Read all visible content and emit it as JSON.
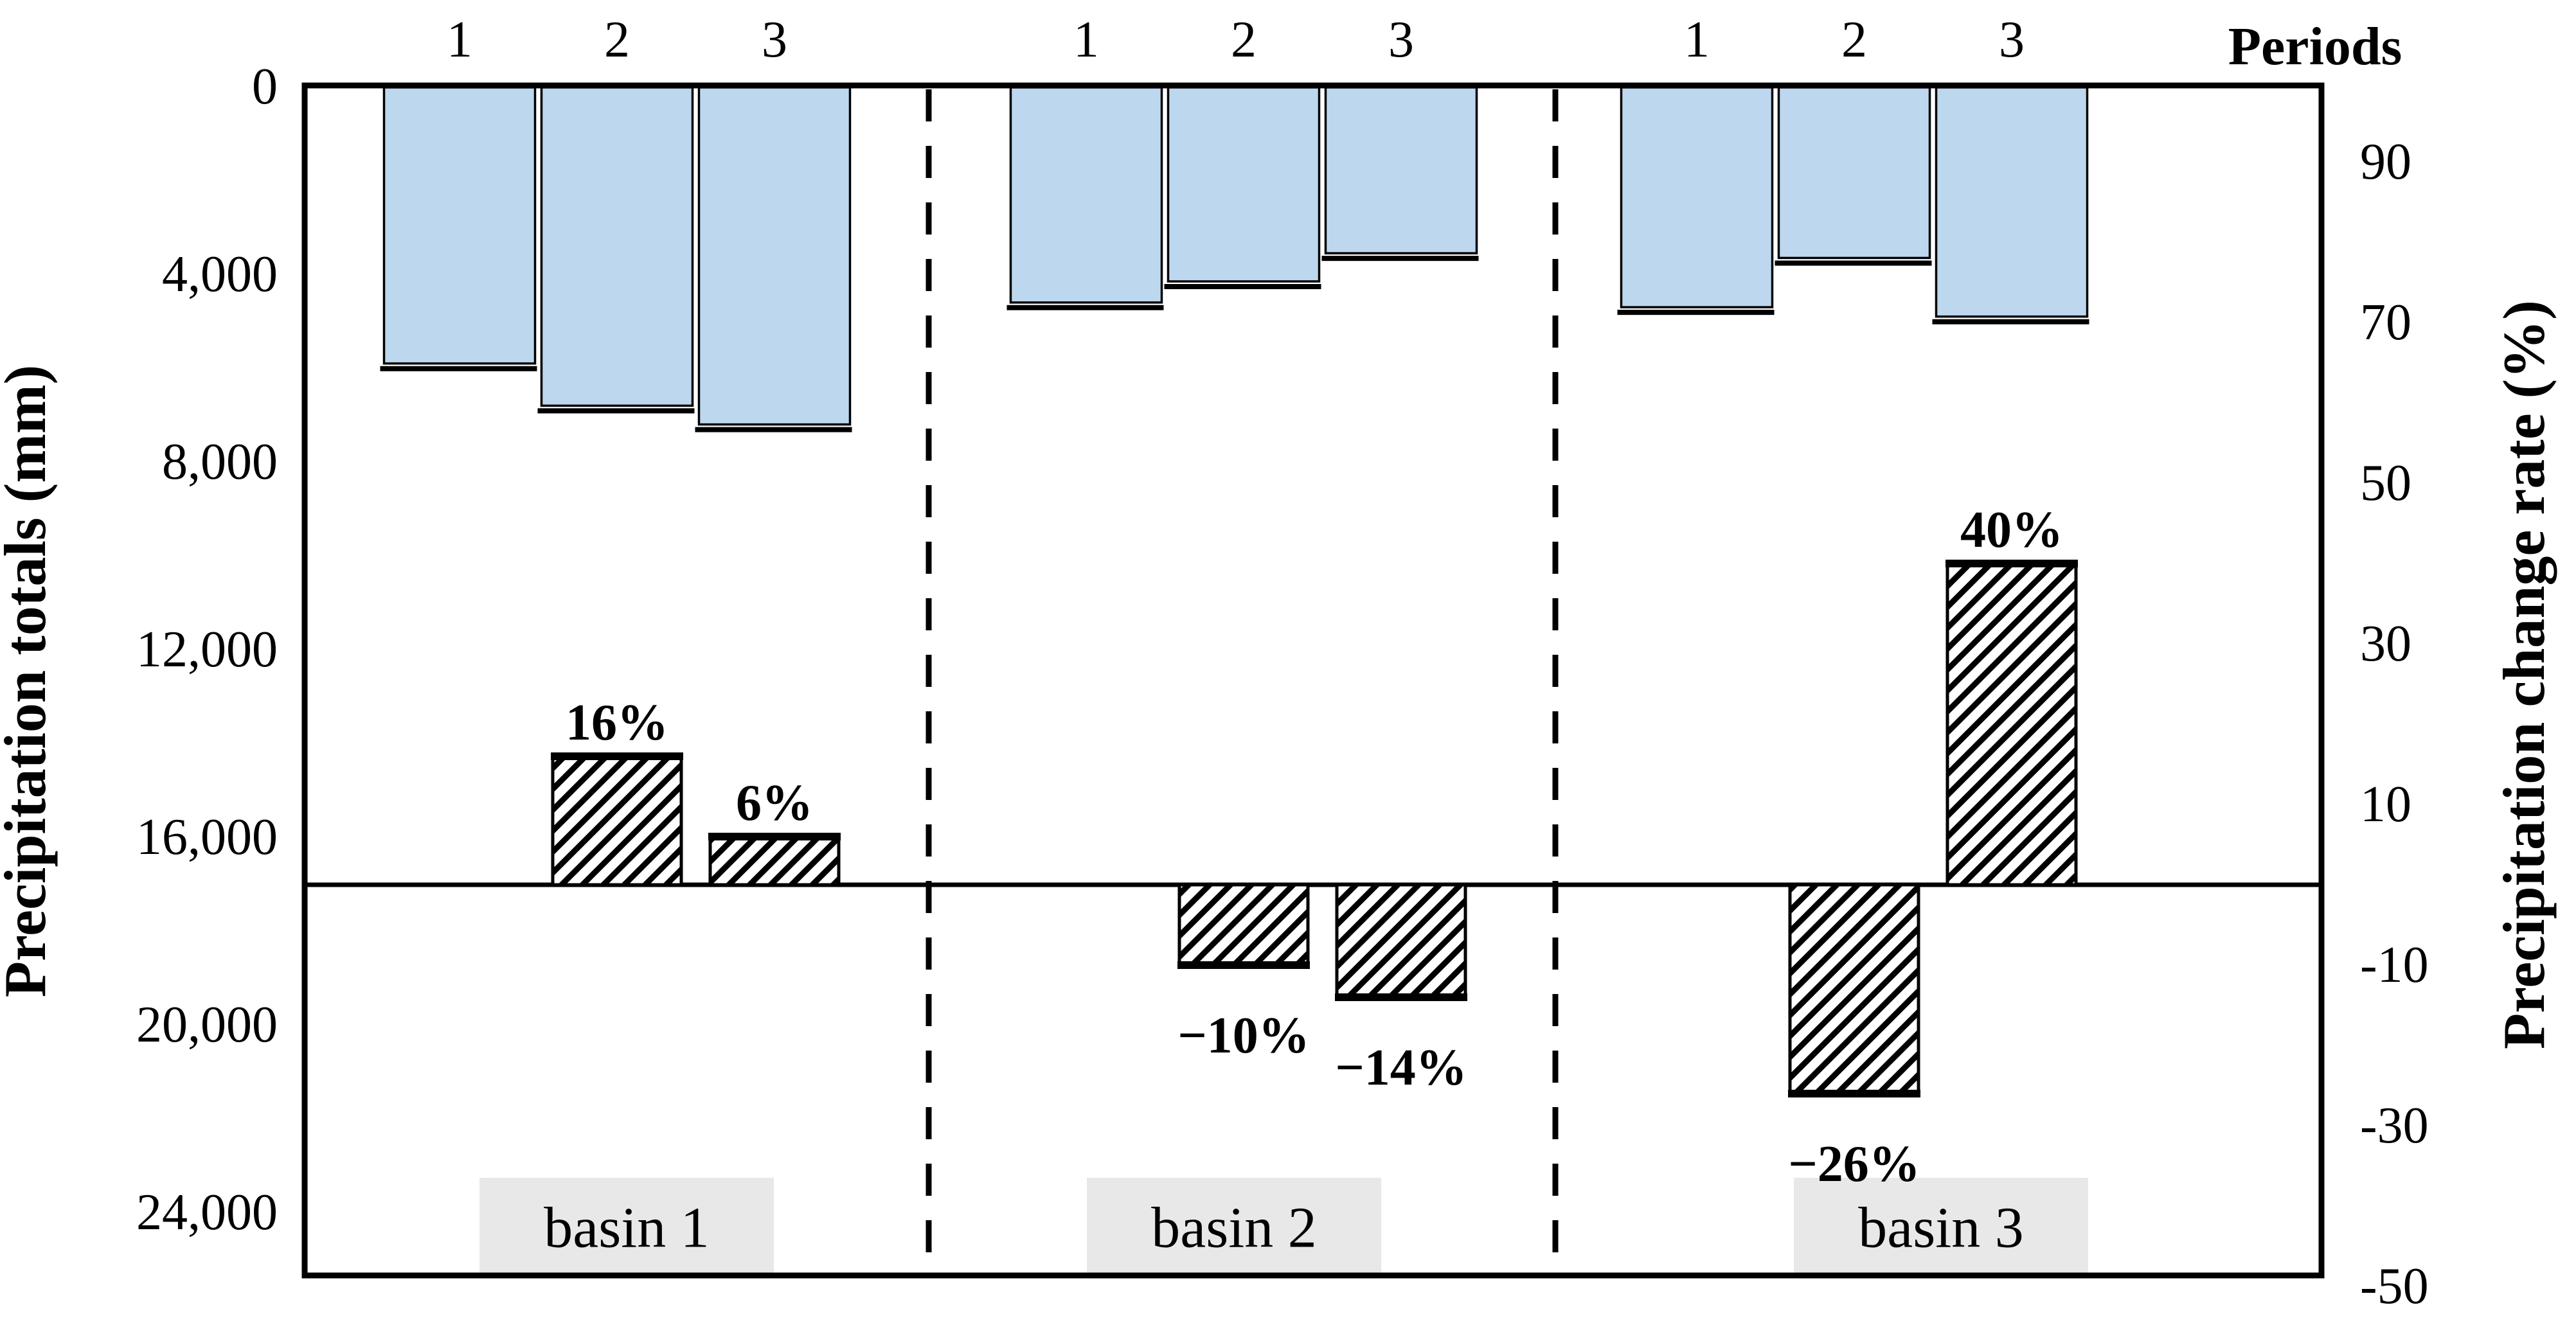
{
  "figure": {
    "kind": "dual-axis column chart",
    "background": "#ffffff"
  },
  "colors": {
    "precip_bar_fill": "#bdd7ee",
    "bar_outline": "#000000",
    "hatch_stripe": "#000000",
    "basin_box_fill": "#e8e8e8",
    "text": "#000000"
  },
  "chart_data": {
    "type": "bar",
    "title": "",
    "grid": "off",
    "legend": "none",
    "top_axis": {
      "label": "Periods",
      "period_labels": [
        "1",
        "2",
        "3"
      ]
    },
    "left_axis": {
      "label": "Precipitation totals (mm)",
      "orientation": "reversed, 0 at top",
      "tick_values": [
        0,
        4000,
        8000,
        12000,
        16000,
        20000,
        24000
      ],
      "tick_labels": [
        "0",
        "4,000",
        "8,000",
        "12,000",
        "16,000",
        "20,000",
        "24,000"
      ]
    },
    "right_axis": {
      "label": "Precipitation change rate (%)",
      "tick_values": [
        90,
        70,
        50,
        30,
        10,
        -10,
        -30,
        -50
      ],
      "tick_labels": [
        "90",
        "70",
        "50",
        "30",
        "10",
        "-10",
        "-30",
        "-50"
      ],
      "range_top_to_bottom": [
        100,
        -50
      ]
    },
    "series": [
      {
        "name": "Precipitation totals (mm)",
        "style": "solid",
        "fill": "#bdd7ee"
      },
      {
        "name": "Precipitation change rate (%)",
        "style": "diagonal-hatch",
        "fill": "white-with-black-stripes"
      }
    ],
    "groups": [
      {
        "name": "basin 1",
        "periods": [
          "1",
          "2",
          "3"
        ],
        "precipitation_totals_mm": [
          5900,
          6800,
          7200
        ],
        "change_rate_pct": [
          null,
          16,
          6
        ],
        "change_rate_labels": [
          null,
          "16%",
          "6%"
        ]
      },
      {
        "name": "basin 2",
        "periods": [
          "1",
          "2",
          "3"
        ],
        "precipitation_totals_mm": [
          4600,
          4150,
          3550
        ],
        "change_rate_pct": [
          null,
          -10,
          -14
        ],
        "change_rate_labels": [
          null,
          "−10%",
          "−14%"
        ]
      },
      {
        "name": "basin 3",
        "periods": [
          "1",
          "2",
          "3"
        ],
        "precipitation_totals_mm": [
          4700,
          3650,
          4900
        ],
        "change_rate_pct": [
          null,
          -26,
          40
        ],
        "change_rate_labels": [
          null,
          "−26%",
          "40%"
        ]
      }
    ],
    "layout_hints": {
      "group_separators": "vertical dashed lines between basins",
      "zero_change_rate_line": true,
      "basin_name_boxes": "gray boxes at bottom inside plot"
    }
  }
}
